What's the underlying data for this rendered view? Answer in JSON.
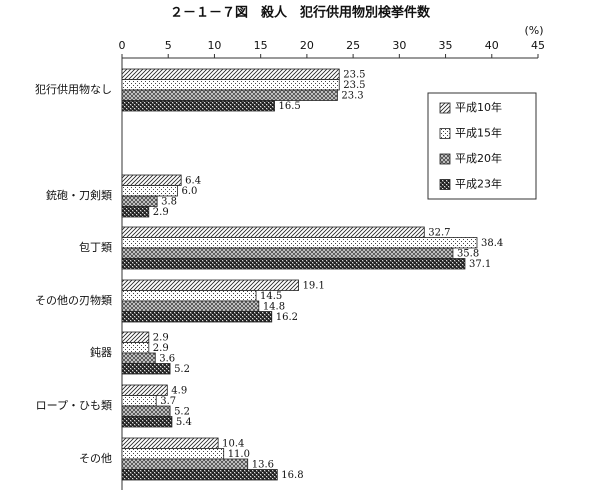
{
  "chart_data": {
    "type": "barh",
    "title": "２－１－７図　殺人　犯行供用物別検挙件数",
    "unit_label": "(%)",
    "categories": [
      "犯行供用物なし",
      "銃砲・刀剣類",
      "包丁類",
      "その他の刃物類",
      "鈍器",
      "ロープ・ひも類",
      "その他"
    ],
    "series": [
      {
        "name": "平成10年",
        "values": [
          23.5,
          6.4,
          32.7,
          19.1,
          2.9,
          4.9,
          10.4
        ],
        "value_labels": [
          "23.5",
          "6.4",
          "32.7",
          "19.1",
          "2.9",
          "4.9",
          "10.4"
        ]
      },
      {
        "name": "平成15年",
        "values": [
          23.5,
          6.0,
          38.4,
          14.5,
          2.9,
          3.7,
          11.0
        ],
        "value_labels": [
          "23.5",
          "6.0",
          "38.4",
          "14.5",
          "2.9",
          "3.7",
          "11.0"
        ]
      },
      {
        "name": "平成20年",
        "values": [
          23.3,
          3.8,
          35.8,
          14.8,
          3.6,
          5.2,
          13.6
        ],
        "value_labels": [
          "23.3",
          "3.8",
          "35.8",
          "14.8",
          "3.6",
          "5.2",
          "13.6"
        ]
      },
      {
        "name": "平成23年",
        "values": [
          16.5,
          2.9,
          37.1,
          16.2,
          5.2,
          5.4,
          16.8
        ],
        "value_labels": [
          "16.5",
          "2.9",
          "37.1",
          "16.2",
          "5.2",
          "5.4",
          "16.8"
        ]
      }
    ],
    "xlim": [
      0,
      45
    ],
    "xticks": [
      0,
      5,
      10,
      15,
      20,
      25,
      30,
      35,
      40,
      45
    ],
    "legend": "upper right"
  }
}
